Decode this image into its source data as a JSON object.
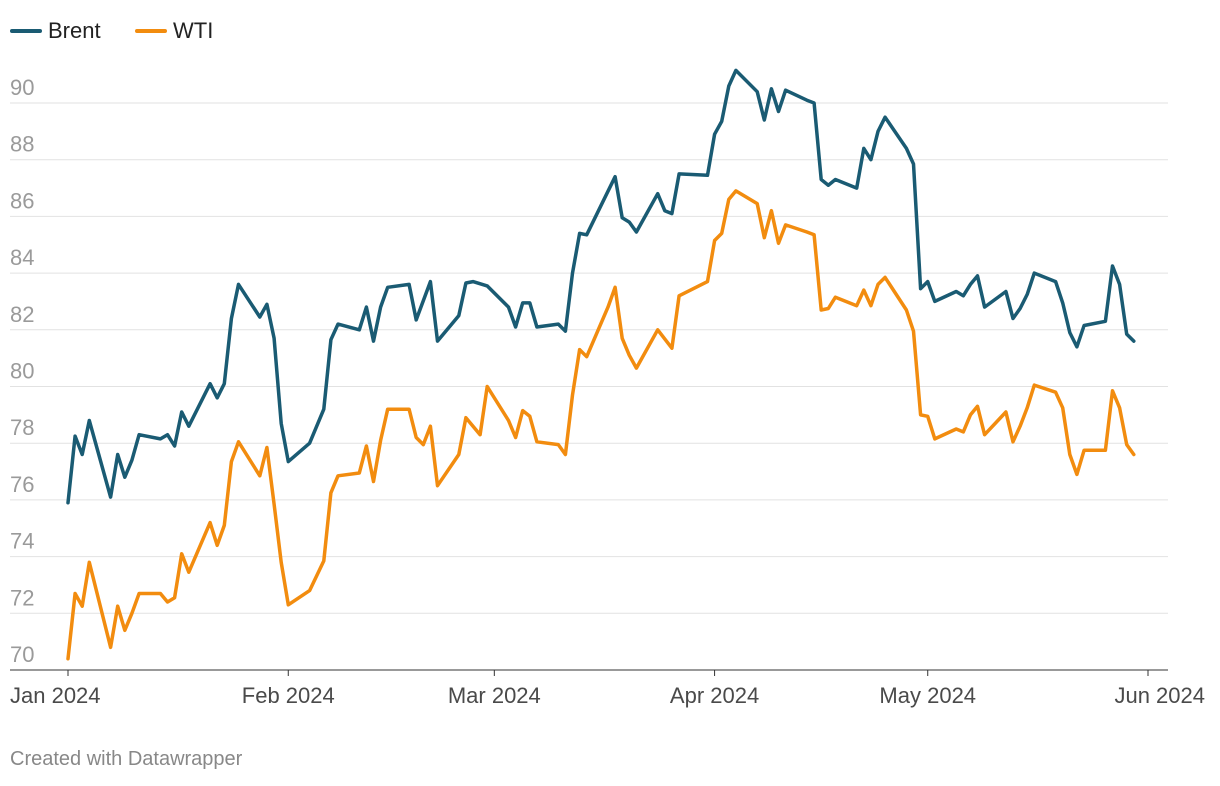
{
  "chart_data": {
    "type": "line",
    "title": "",
    "xlabel": "",
    "ylabel": "",
    "ylim": [
      70,
      91.5
    ],
    "grid": true,
    "legend_position": "top-left",
    "y_ticks": [
      70,
      72,
      74,
      76,
      78,
      80,
      82,
      84,
      86,
      88,
      90
    ],
    "y_tick_labels": [
      "70",
      "72",
      "74",
      "76",
      "78",
      "80",
      "82",
      "84",
      "86",
      "88",
      "90"
    ],
    "x_ticks": [
      {
        "label": "Jan 2024",
        "day": 0
      },
      {
        "label": "Feb 2024",
        "day": 31
      },
      {
        "label": "Mar 2024",
        "day": 60
      },
      {
        "label": "Apr 2024",
        "day": 91
      },
      {
        "label": "May 2024",
        "day": 121
      },
      {
        "label": "Jun 2024",
        "day": 152
      }
    ],
    "x_range_days": [
      0,
      152
    ],
    "series": [
      {
        "name": "Brent",
        "color": "#1a5b73",
        "points": [
          [
            0,
            75.9
          ],
          [
            1,
            78.25
          ],
          [
            2,
            77.6
          ],
          [
            3,
            78.8
          ],
          [
            6,
            76.1
          ],
          [
            7,
            77.6
          ],
          [
            8,
            76.8
          ],
          [
            9,
            77.4
          ],
          [
            10,
            78.3
          ],
          [
            13,
            78.15
          ],
          [
            14,
            78.3
          ],
          [
            15,
            77.9
          ],
          [
            16,
            79.1
          ],
          [
            17,
            78.6
          ],
          [
            20,
            80.1
          ],
          [
            21,
            79.6
          ],
          [
            22,
            80.1
          ],
          [
            23,
            82.4
          ],
          [
            24,
            83.6
          ],
          [
            27,
            82.45
          ],
          [
            28,
            82.9
          ],
          [
            29,
            81.7
          ],
          [
            30,
            78.7
          ],
          [
            31,
            77.35
          ],
          [
            34,
            78.0
          ],
          [
            36,
            79.2
          ],
          [
            37,
            81.65
          ],
          [
            38,
            82.2
          ],
          [
            41,
            82.0
          ],
          [
            42,
            82.8
          ],
          [
            43,
            81.6
          ],
          [
            44,
            82.8
          ],
          [
            45,
            83.5
          ],
          [
            48,
            83.6
          ],
          [
            49,
            82.35
          ],
          [
            51,
            83.7
          ],
          [
            52,
            81.6
          ],
          [
            55,
            82.5
          ],
          [
            56,
            83.65
          ],
          [
            57,
            83.7
          ],
          [
            59,
            83.55
          ],
          [
            62,
            82.8
          ],
          [
            63,
            82.1
          ],
          [
            64,
            82.95
          ],
          [
            65,
            82.95
          ],
          [
            66,
            82.1
          ],
          [
            69,
            82.2
          ],
          [
            70,
            81.95
          ],
          [
            71,
            84.0
          ],
          [
            72,
            85.4
          ],
          [
            73,
            85.35
          ],
          [
            77,
            87.4
          ],
          [
            78,
            85.95
          ],
          [
            79,
            85.8
          ],
          [
            80,
            85.45
          ],
          [
            83,
            86.8
          ],
          [
            84,
            86.2
          ],
          [
            85,
            86.1
          ],
          [
            86,
            87.5
          ],
          [
            90,
            87.45
          ],
          [
            91,
            88.9
          ],
          [
            92,
            89.35
          ],
          [
            93,
            90.6
          ],
          [
            94,
            91.15
          ],
          [
            97,
            90.4
          ],
          [
            98,
            89.4
          ],
          [
            99,
            90.5
          ],
          [
            100,
            89.7
          ],
          [
            101,
            90.45
          ],
          [
            104,
            90.1
          ],
          [
            105,
            90.0
          ],
          [
            106,
            87.3
          ],
          [
            107,
            87.1
          ],
          [
            108,
            87.3
          ],
          [
            111,
            87.0
          ],
          [
            112,
            88.4
          ],
          [
            113,
            88.0
          ],
          [
            114,
            89.0
          ],
          [
            115,
            89.5
          ],
          [
            118,
            88.4
          ],
          [
            119,
            87.85
          ],
          [
            120,
            83.45
          ],
          [
            121,
            83.7
          ],
          [
            122,
            83.0
          ],
          [
            125,
            83.35
          ],
          [
            126,
            83.2
          ],
          [
            127,
            83.6
          ],
          [
            128,
            83.9
          ],
          [
            129,
            82.8
          ],
          [
            132,
            83.35
          ],
          [
            133,
            82.4
          ],
          [
            134,
            82.75
          ],
          [
            135,
            83.25
          ],
          [
            136,
            84.0
          ],
          [
            139,
            83.7
          ],
          [
            140,
            82.95
          ],
          [
            141,
            81.9
          ],
          [
            142,
            81.4
          ],
          [
            143,
            82.15
          ],
          [
            146,
            82.3
          ],
          [
            147,
            84.25
          ],
          [
            148,
            83.6
          ],
          [
            149,
            81.85
          ],
          [
            150,
            81.6
          ]
        ]
      },
      {
        "name": "WTI",
        "color": "#f28c0f",
        "points": [
          [
            0,
            70.4
          ],
          [
            1,
            72.7
          ],
          [
            2,
            72.25
          ],
          [
            3,
            73.8
          ],
          [
            6,
            70.8
          ],
          [
            7,
            72.25
          ],
          [
            8,
            71.4
          ],
          [
            9,
            72.0
          ],
          [
            10,
            72.7
          ],
          [
            13,
            72.7
          ],
          [
            14,
            72.4
          ],
          [
            15,
            72.55
          ],
          [
            16,
            74.1
          ],
          [
            17,
            73.45
          ],
          [
            20,
            75.2
          ],
          [
            21,
            74.4
          ],
          [
            22,
            75.1
          ],
          [
            23,
            77.35
          ],
          [
            24,
            78.05
          ],
          [
            27,
            76.85
          ],
          [
            28,
            77.85
          ],
          [
            29,
            75.85
          ],
          [
            30,
            73.8
          ],
          [
            31,
            72.3
          ],
          [
            34,
            72.8
          ],
          [
            36,
            73.85
          ],
          [
            37,
            76.25
          ],
          [
            38,
            76.85
          ],
          [
            41,
            76.95
          ],
          [
            42,
            77.9
          ],
          [
            43,
            76.65
          ],
          [
            44,
            78.1
          ],
          [
            45,
            79.2
          ],
          [
            48,
            79.2
          ],
          [
            49,
            78.2
          ],
          [
            50,
            77.95
          ],
          [
            51,
            78.6
          ],
          [
            52,
            76.5
          ],
          [
            55,
            77.6
          ],
          [
            56,
            78.9
          ],
          [
            58,
            78.3
          ],
          [
            59,
            80.0
          ],
          [
            62,
            78.8
          ],
          [
            63,
            78.2
          ],
          [
            64,
            79.15
          ],
          [
            65,
            78.95
          ],
          [
            66,
            78.05
          ],
          [
            69,
            77.95
          ],
          [
            70,
            77.6
          ],
          [
            71,
            79.7
          ],
          [
            72,
            81.3
          ],
          [
            73,
            81.05
          ],
          [
            76,
            82.8
          ],
          [
            77,
            83.5
          ],
          [
            78,
            81.7
          ],
          [
            79,
            81.1
          ],
          [
            80,
            80.65
          ],
          [
            83,
            82.0
          ],
          [
            85,
            81.35
          ],
          [
            86,
            83.2
          ],
          [
            90,
            83.7
          ],
          [
            91,
            85.15
          ],
          [
            92,
            85.4
          ],
          [
            93,
            86.6
          ],
          [
            94,
            86.9
          ],
          [
            97,
            86.45
          ],
          [
            98,
            85.25
          ],
          [
            99,
            86.2
          ],
          [
            100,
            85.05
          ],
          [
            101,
            85.7
          ],
          [
            104,
            85.45
          ],
          [
            105,
            85.35
          ],
          [
            106,
            82.7
          ],
          [
            107,
            82.75
          ],
          [
            108,
            83.15
          ],
          [
            111,
            82.85
          ],
          [
            112,
            83.4
          ],
          [
            113,
            82.85
          ],
          [
            114,
            83.6
          ],
          [
            115,
            83.85
          ],
          [
            118,
            82.7
          ],
          [
            119,
            81.95
          ],
          [
            120,
            79.0
          ],
          [
            121,
            78.95
          ],
          [
            122,
            78.15
          ],
          [
            125,
            78.5
          ],
          [
            126,
            78.4
          ],
          [
            127,
            79.0
          ],
          [
            128,
            79.3
          ],
          [
            129,
            78.3
          ],
          [
            132,
            79.1
          ],
          [
            133,
            78.05
          ],
          [
            134,
            78.6
          ],
          [
            135,
            79.25
          ],
          [
            136,
            80.05
          ],
          [
            139,
            79.8
          ],
          [
            140,
            79.25
          ],
          [
            141,
            77.6
          ],
          [
            142,
            76.9
          ],
          [
            143,
            77.75
          ],
          [
            146,
            77.75
          ],
          [
            147,
            79.85
          ],
          [
            148,
            79.25
          ],
          [
            149,
            77.95
          ],
          [
            150,
            77.6
          ]
        ]
      }
    ]
  },
  "footer": {
    "credit": "Created with Datawrapper"
  }
}
